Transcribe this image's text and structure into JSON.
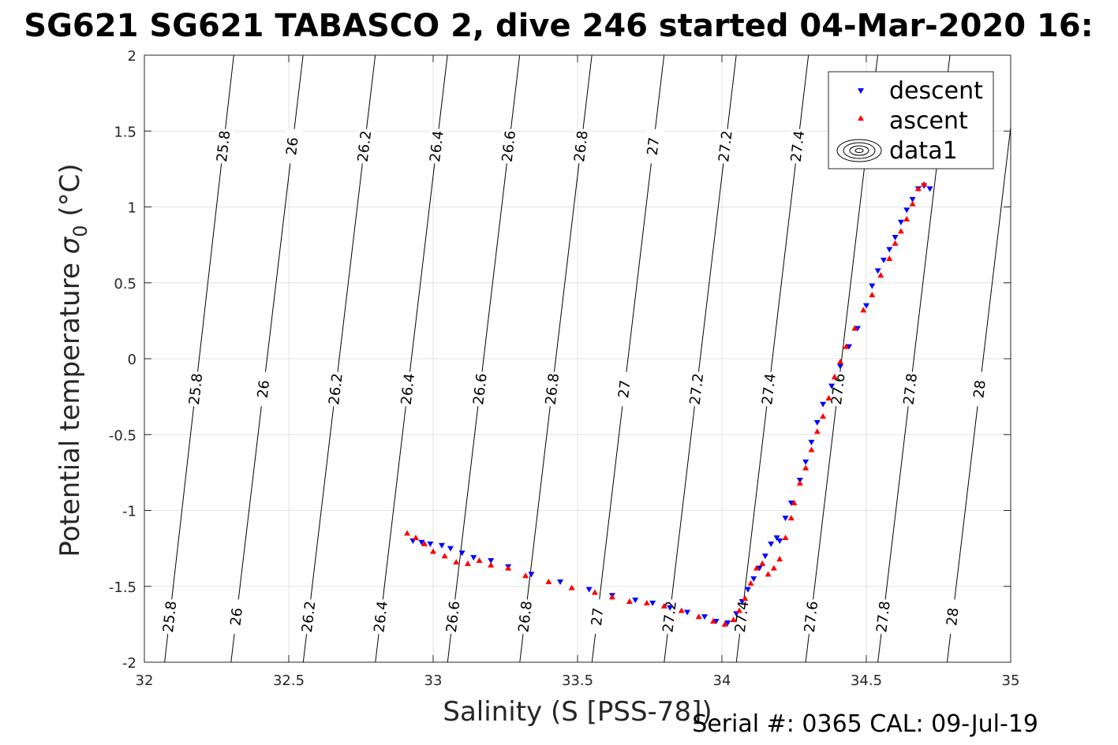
{
  "chart_data": {
    "type": "scatter",
    "title": "SG621 SG621 TABASCO 2, dive 246 started 04-Mar-2020 16:",
    "xlabel": "Salinity (S [PSS-78])",
    "ylabel": "Potential temperature σ0 (°C)",
    "ylabel_main": "Potential temperature ",
    "ylabel_sym": "σ",
    "ylabel_sub": "0",
    "ylabel_unit": " (°C)",
    "footer": "Serial #: 0365  CAL: 09-Jul-19",
    "xlim": [
      32,
      35
    ],
    "ylim": [
      -2,
      2
    ],
    "xticks": [
      32,
      32.5,
      33,
      33.5,
      34,
      34.5,
      35
    ],
    "xtick_labels": [
      "32",
      "32.5",
      "33",
      "33.5",
      "34",
      "34.5",
      "35"
    ],
    "yticks": [
      -2,
      -1.5,
      -1,
      -0.5,
      0,
      0.5,
      1,
      1.5,
      2
    ],
    "ytick_labels": [
      "-2",
      "-1.5",
      "-1",
      "-0.5",
      "0",
      "0.5",
      "1",
      "1.5",
      "2"
    ],
    "grid": true,
    "legend": {
      "placement": "top-right",
      "entries": [
        "descent",
        "ascent",
        "data1"
      ]
    },
    "contours": [
      {
        "label": "25.8",
        "x_bottom": 32.07,
        "x_top": 32.05
      },
      {
        "label": "26",
        "x_bottom": 32.3,
        "x_top": 32.29
      },
      {
        "label": "26.2",
        "x_bottom": 32.55,
        "x_top": 32.54
      },
      {
        "label": "26.4",
        "x_bottom": 32.8,
        "x_top": 32.79
      },
      {
        "label": "26.6",
        "x_bottom": 33.05,
        "x_top": 33.04
      },
      {
        "label": "26.8",
        "x_bottom": 33.3,
        "x_top": 33.29
      },
      {
        "label": "27",
        "x_bottom": 33.55,
        "x_top": 33.54
      },
      {
        "label": "27.2",
        "x_bottom": 33.8,
        "x_top": 33.79
      },
      {
        "label": "27.4",
        "x_bottom": 34.05,
        "x_top": 34.04
      },
      {
        "label": "27.6",
        "x_bottom": 34.29,
        "x_top": 34.28
      },
      {
        "label": "27.8",
        "x_bottom": 34.54,
        "x_top": 34.53
      },
      {
        "label": "28",
        "x_bottom": 34.78,
        "x_top": 34.77
      }
    ],
    "series": [
      {
        "name": "descent",
        "marker": "triangle-down",
        "color": "#0000ff",
        "x": [
          32.93,
          32.96,
          32.99,
          33.03,
          33.06,
          33.1,
          33.14,
          33.2,
          33.26,
          33.34,
          33.44,
          33.54,
          33.62,
          33.7,
          33.76,
          33.82,
          33.88,
          33.94,
          33.98,
          34.02,
          34.05,
          34.07,
          34.09,
          34.11,
          34.13,
          34.15,
          34.17,
          34.19,
          34.2,
          34.22,
          34.24,
          34.27,
          34.29,
          34.31,
          34.33,
          34.35,
          34.38,
          34.41,
          34.44,
          34.47,
          34.5,
          34.52,
          34.54,
          34.56,
          34.58,
          34.6,
          34.62,
          34.64,
          34.66,
          34.68,
          34.7,
          34.72
        ],
        "y": [
          -1.2,
          -1.21,
          -1.22,
          -1.23,
          -1.25,
          -1.28,
          -1.31,
          -1.33,
          -1.37,
          -1.42,
          -1.47,
          -1.52,
          -1.56,
          -1.59,
          -1.61,
          -1.64,
          -1.67,
          -1.7,
          -1.73,
          -1.74,
          -1.68,
          -1.6,
          -1.52,
          -1.45,
          -1.38,
          -1.3,
          -1.22,
          -1.18,
          -1.2,
          -1.05,
          -0.95,
          -0.8,
          -0.68,
          -0.55,
          -0.42,
          -0.3,
          -0.18,
          -0.05,
          0.08,
          0.2,
          0.35,
          0.48,
          0.58,
          0.65,
          0.72,
          0.8,
          0.9,
          0.98,
          1.05,
          1.12,
          1.14,
          1.12
        ]
      },
      {
        "name": "ascent",
        "marker": "triangle-up",
        "color": "#ff0000",
        "x": [
          32.91,
          32.94,
          32.97,
          33.0,
          33.04,
          33.08,
          33.12,
          33.16,
          33.2,
          33.26,
          33.32,
          33.4,
          33.48,
          33.56,
          33.62,
          33.68,
          33.74,
          33.8,
          33.86,
          33.92,
          33.97,
          34.01,
          34.04,
          34.06,
          34.08,
          34.1,
          34.12,
          34.14,
          34.16,
          34.18,
          34.2,
          34.22,
          34.24,
          34.25,
          34.27,
          34.29,
          34.31,
          34.33,
          34.35,
          34.37,
          34.39,
          34.41,
          34.43,
          34.46,
          34.49,
          34.52,
          34.55,
          34.58,
          34.6,
          34.62,
          34.64,
          34.66,
          34.68,
          34.7
        ],
        "y": [
          -1.15,
          -1.18,
          -1.22,
          -1.27,
          -1.3,
          -1.34,
          -1.35,
          -1.33,
          -1.36,
          -1.38,
          -1.43,
          -1.47,
          -1.51,
          -1.54,
          -1.57,
          -1.6,
          -1.61,
          -1.63,
          -1.66,
          -1.7,
          -1.73,
          -1.75,
          -1.72,
          -1.66,
          -1.58,
          -1.48,
          -1.38,
          -1.35,
          -1.42,
          -1.38,
          -1.32,
          -1.18,
          -1.05,
          -0.95,
          -0.82,
          -0.72,
          -0.6,
          -0.48,
          -0.38,
          -0.26,
          -0.12,
          -0.02,
          0.08,
          0.2,
          0.32,
          0.42,
          0.55,
          0.66,
          0.76,
          0.84,
          0.92,
          1.02,
          1.12,
          1.15
        ]
      }
    ]
  }
}
